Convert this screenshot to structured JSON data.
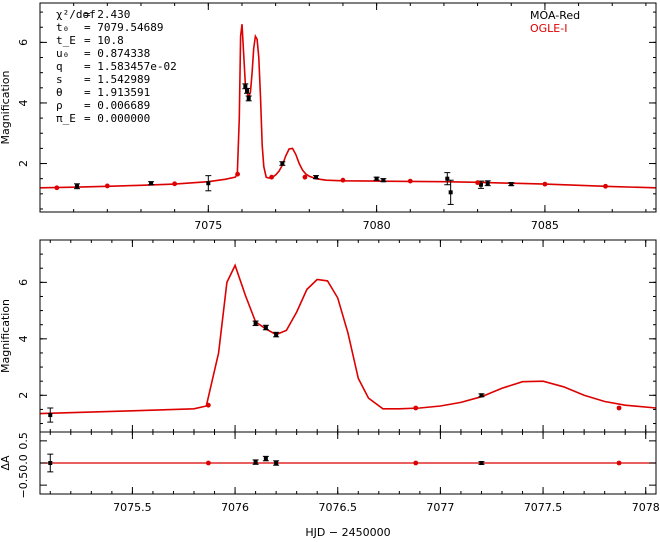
{
  "chart_data": [
    {
      "id": "top",
      "type": "scatter",
      "title": "",
      "xlabel": "",
      "ylabel": "Magnification",
      "xlim": [
        7070.0,
        7088.3
      ],
      "ylim": [
        0.4,
        7.3
      ],
      "xticks": [
        7075,
        7080,
        7085
      ],
      "yticks": [
        2,
        4,
        6
      ],
      "grid": false,
      "legend": {
        "placement": "top-right",
        "entries": [
          {
            "label": "MOA-Red",
            "color": "#000000"
          },
          {
            "label": "OGLE-I",
            "color": "#dd0000"
          }
        ]
      },
      "params": [
        {
          "sym": "χ²/dof",
          "val": "= 2.430"
        },
        {
          "sym": "t₀",
          "val": "= 7079.54689"
        },
        {
          "sym": "t_E",
          "val": "= 10.8"
        },
        {
          "sym": "u₀",
          "val": "= 0.874338"
        },
        {
          "sym": "q",
          "val": "= 1.583457e-02"
        },
        {
          "sym": "s",
          "val": "= 1.542989"
        },
        {
          "sym": "θ",
          "val": "= 1.913591"
        },
        {
          "sym": "ρ",
          "val": "= 0.006689"
        },
        {
          "sym": "π_E",
          "val": "= 0.000000"
        }
      ],
      "model": {
        "name": "model",
        "color": "#dd0000",
        "x": [
          7070.0,
          7071.0,
          7072.0,
          7073.0,
          7074.0,
          7075.0,
          7075.5,
          7075.8,
          7075.86,
          7075.92,
          7075.96,
          7076.0,
          7076.05,
          7076.1,
          7076.15,
          7076.2,
          7076.25,
          7076.3,
          7076.35,
          7076.4,
          7076.45,
          7076.5,
          7076.55,
          7076.6,
          7076.65,
          7076.72,
          7076.8,
          7076.9,
          7077.0,
          7077.1,
          7077.2,
          7077.3,
          7077.4,
          7077.5,
          7077.6,
          7077.7,
          7077.8,
          7077.9,
          7078.0,
          7078.2,
          7078.5,
          7079.0,
          7080.0,
          7081.0,
          7082.0,
          7083.0,
          7084.0,
          7085.0,
          7086.0,
          7087.0,
          7088.3
        ],
        "y": [
          1.2,
          1.22,
          1.25,
          1.28,
          1.32,
          1.4,
          1.48,
          1.55,
          1.65,
          3.5,
          6.2,
          6.6,
          5.6,
          4.65,
          4.35,
          4.2,
          4.35,
          5.0,
          5.8,
          6.2,
          6.1,
          5.5,
          4.2,
          2.6,
          1.9,
          1.55,
          1.52,
          1.55,
          1.62,
          1.75,
          1.95,
          2.25,
          2.48,
          2.5,
          2.3,
          2.0,
          1.78,
          1.65,
          1.58,
          1.5,
          1.45,
          1.43,
          1.42,
          1.41,
          1.4,
          1.38,
          1.35,
          1.32,
          1.28,
          1.24,
          1.2
        ]
      },
      "series": [
        {
          "name": "MOA-Red",
          "color": "#000000",
          "marker": "square",
          "x": [
            7071.1,
            7073.3,
            7075.0,
            7076.1,
            7076.15,
            7076.2,
            7077.2,
            7078.2,
            7080.0,
            7080.2,
            7082.1,
            7082.2,
            7083.1,
            7083.3,
            7084.0
          ],
          "y": [
            1.25,
            1.35,
            1.35,
            4.55,
            4.4,
            4.15,
            2.0,
            1.55,
            1.5,
            1.45,
            1.5,
            1.05,
            1.3,
            1.35,
            1.32
          ],
          "err": [
            0.08,
            0.05,
            0.25,
            0.08,
            0.08,
            0.08,
            0.06,
            0.05,
            0.05,
            0.05,
            0.2,
            0.4,
            0.12,
            0.08,
            0.05
          ]
        },
        {
          "name": "OGLE-I",
          "color": "#dd0000",
          "marker": "dot",
          "x": [
            7070.5,
            7072.0,
            7074.0,
            7075.87,
            7076.88,
            7077.87,
            7079.0,
            7081.0,
            7083.0,
            7085.0,
            7086.8
          ],
          "y": [
            1.2,
            1.26,
            1.33,
            1.65,
            1.55,
            1.55,
            1.45,
            1.42,
            1.37,
            1.32,
            1.25
          ],
          "err": [
            0.02,
            0.02,
            0.02,
            0.03,
            0.02,
            0.02,
            0.02,
            0.02,
            0.02,
            0.02,
            0.02
          ]
        }
      ]
    },
    {
      "id": "zoom",
      "type": "scatter",
      "title": "",
      "xlabel": "",
      "ylabel": "Magnification",
      "xlim": [
        7075.05,
        7078.05
      ],
      "ylim": [
        0.7,
        7.5
      ],
      "yticks": [
        2,
        4,
        6
      ],
      "grid": false,
      "model": {
        "name": "model",
        "color": "#dd0000",
        "x": [
          7075.05,
          7075.5,
          7075.8,
          7075.86,
          7075.92,
          7075.96,
          7076.0,
          7076.05,
          7076.1,
          7076.15,
          7076.2,
          7076.25,
          7076.3,
          7076.35,
          7076.4,
          7076.45,
          7076.5,
          7076.55,
          7076.6,
          7076.65,
          7076.72,
          7076.8,
          7076.9,
          7077.0,
          7077.1,
          7077.2,
          7077.3,
          7077.4,
          7077.5,
          7077.6,
          7077.7,
          7077.8,
          7077.9,
          7078.05
        ],
        "y": [
          1.35,
          1.45,
          1.52,
          1.62,
          3.5,
          6.0,
          6.6,
          5.55,
          4.6,
          4.35,
          4.15,
          4.3,
          4.95,
          5.75,
          6.1,
          6.05,
          5.45,
          4.2,
          2.6,
          1.9,
          1.52,
          1.52,
          1.55,
          1.62,
          1.75,
          1.95,
          2.25,
          2.48,
          2.5,
          2.3,
          2.0,
          1.78,
          1.65,
          1.55
        ]
      },
      "series": [
        {
          "name": "MOA-Red",
          "color": "#000000",
          "marker": "square",
          "x": [
            7075.1,
            7076.1,
            7076.15,
            7076.2,
            7077.2
          ],
          "y": [
            1.3,
            4.55,
            4.4,
            4.15,
            2.0
          ],
          "err": [
            0.25,
            0.08,
            0.08,
            0.08,
            0.05
          ]
        },
        {
          "name": "OGLE-I",
          "color": "#dd0000",
          "marker": "dot",
          "x": [
            7075.87,
            7076.88,
            7077.87
          ],
          "y": [
            1.65,
            1.55,
            1.55
          ],
          "err": [
            0.03,
            0.02,
            0.02
          ]
        }
      ]
    },
    {
      "id": "residuals",
      "type": "scatter",
      "title": "",
      "xlabel": "HJD − 2450000",
      "ylabel": "ΔA",
      "xlim": [
        7075.05,
        7078.05
      ],
      "ylim": [
        -0.7,
        0.7
      ],
      "xticks": [
        7075.5,
        7076,
        7076.5,
        7077,
        7077.5,
        7078
      ],
      "xtick_labels": [
        "7075.5",
        "7076",
        "7076.5",
        "7077",
        "7077.5",
        "7078"
      ],
      "yticks": [
        -0.5,
        0,
        0.5
      ],
      "ytick_labels": [
        "−0.5",
        "0.0",
        "0.5"
      ],
      "grid": false,
      "zero_line_color": "#dd0000",
      "series": [
        {
          "name": "MOA-Red",
          "color": "#000000",
          "marker": "square",
          "x": [
            7075.1,
            7076.1,
            7076.15,
            7076.2,
            7077.2
          ],
          "y": [
            0.0,
            0.02,
            0.1,
            0.0,
            0.0
          ],
          "err": [
            0.2,
            0.05,
            0.05,
            0.05,
            0.03
          ]
        },
        {
          "name": "OGLE-I",
          "color": "#dd0000",
          "marker": "dot",
          "x": [
            7075.87,
            7076.88,
            7077.87
          ],
          "y": [
            0.0,
            0.0,
            0.0
          ],
          "err": [
            0.01,
            0.01,
            0.01
          ]
        }
      ]
    }
  ]
}
